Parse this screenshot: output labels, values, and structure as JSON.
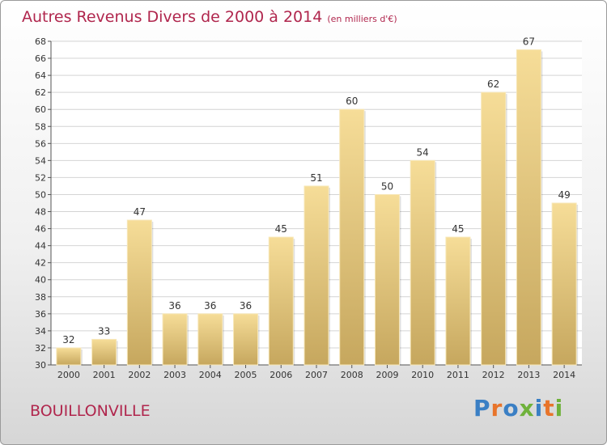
{
  "chart_data": {
    "type": "bar",
    "title": "Autres Revenus Divers de 2000 à 2014",
    "subtitle": "(en milliers d'€)",
    "categories": [
      "2000",
      "2001",
      "2002",
      "2003",
      "2004",
      "2005",
      "2006",
      "2007",
      "2008",
      "2009",
      "2010",
      "2011",
      "2012",
      "2013",
      "2014"
    ],
    "values": [
      32,
      33,
      47,
      36,
      36,
      36,
      45,
      51,
      60,
      50,
      54,
      45,
      62,
      67,
      49
    ],
    "ylim": [
      30,
      68
    ],
    "ytick_step": 2,
    "grid": true,
    "colors": {
      "bar_top": "#f6dd98",
      "bar_bottom": "#c6a75e",
      "title": "#b0264d"
    }
  },
  "place_name": "BOUILLONVILLE",
  "logo": {
    "text": "Proxiti",
    "letter_colors": [
      "#3a7fc4",
      "#e8742a",
      "#3a7fc4",
      "#6fb23b",
      "#3a7fc4",
      "#e8742a",
      "#6fb23b"
    ]
  }
}
